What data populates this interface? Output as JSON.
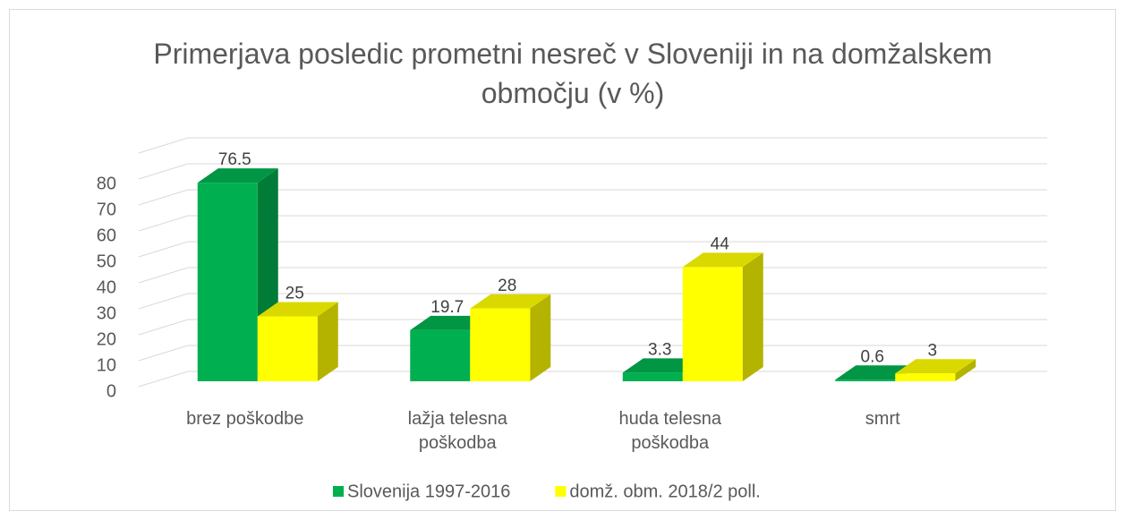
{
  "chart_data": {
    "type": "bar3d",
    "title": "Primerjava  posledic prometni nesreč v Sloveniji in na domžalskem območju (v %)",
    "categories": [
      "brez poškodbe",
      "lažja telesna poškodba",
      "huda telesna poškodba",
      "smrt"
    ],
    "series": [
      {
        "name": "Slovenija 1997-2016",
        "color": "#00b050",
        "values": [
          76.5,
          19.7,
          3.3,
          0.6
        ]
      },
      {
        "name": "domž. obm. 2018/2 poll.",
        "color": "#ffff00",
        "values": [
          25,
          28,
          44,
          3
        ]
      }
    ],
    "ylim": [
      0,
      90
    ],
    "yticks": [
      0,
      10,
      20,
      30,
      40,
      50,
      60,
      70,
      80
    ],
    "grid": true,
    "legend": "bottom"
  }
}
